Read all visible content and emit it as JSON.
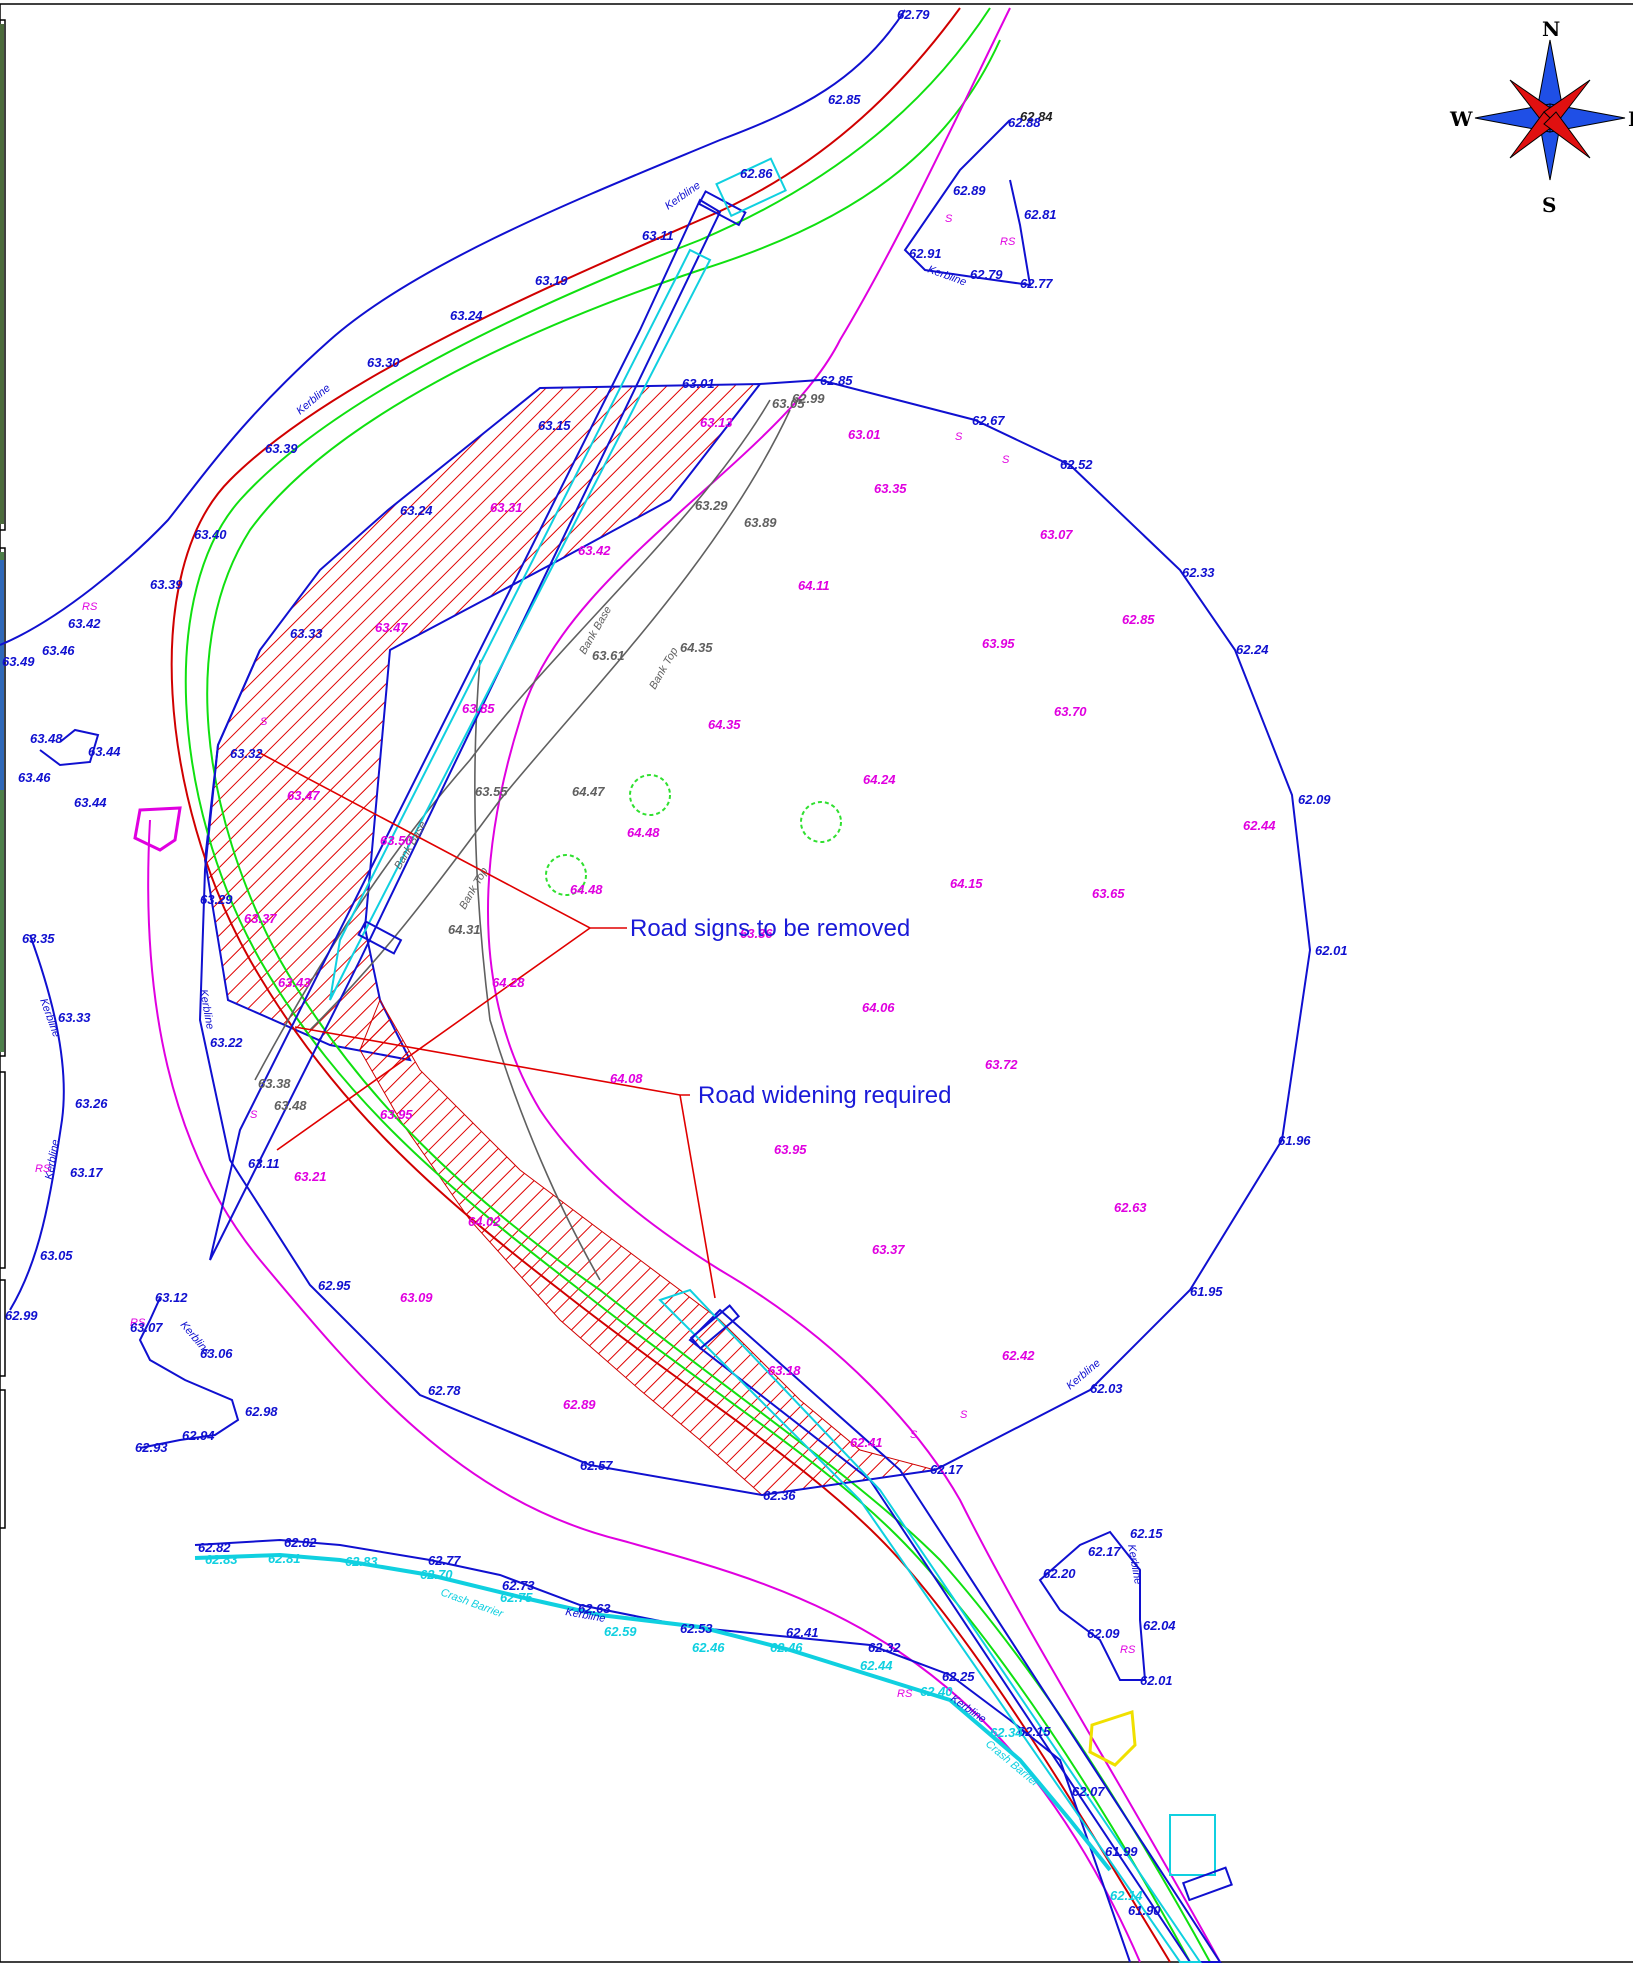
{
  "compass": {
    "north": "N",
    "south": "S",
    "west": "W",
    "east": "E"
  },
  "callouts": {
    "signs_removed": "Road signs to be removed",
    "widening": "Road widening required"
  },
  "feature_tags": {
    "kerbline": "Kerbline",
    "bank_base": "Bank Base",
    "bank_top": "Bank Top",
    "crash_barrier": "Crash Barrier",
    "sign": "S",
    "road_sign": "RS"
  },
  "spot_levels": [
    {
      "v": "62.79",
      "c": "blue"
    },
    {
      "v": "62.85",
      "c": "blue"
    },
    {
      "v": "62.84",
      "c": "black"
    },
    {
      "v": "62.88",
      "c": "blue"
    },
    {
      "v": "62.89",
      "c": "blue"
    },
    {
      "v": "62.81",
      "c": "blue"
    },
    {
      "v": "62.91",
      "c": "blue"
    },
    {
      "v": "62.79",
      "c": "blue"
    },
    {
      "v": "62.77",
      "c": "blue"
    },
    {
      "v": "62.86",
      "c": "blue"
    },
    {
      "v": "63.11",
      "c": "blue"
    },
    {
      "v": "63.19",
      "c": "blue"
    },
    {
      "v": "63.24",
      "c": "blue"
    },
    {
      "v": "63.30",
      "c": "blue"
    },
    {
      "v": "63.39",
      "c": "blue"
    },
    {
      "v": "63.40",
      "c": "blue"
    },
    {
      "v": "63.39",
      "c": "blue"
    },
    {
      "v": "63.42",
      "c": "blue"
    },
    {
      "v": "63.46",
      "c": "blue"
    },
    {
      "v": "63.49",
      "c": "blue"
    },
    {
      "v": "63.48",
      "c": "blue"
    },
    {
      "v": "63.44",
      "c": "blue"
    },
    {
      "v": "63.46",
      "c": "blue"
    },
    {
      "v": "63.44",
      "c": "blue"
    },
    {
      "v": "63.01",
      "c": "blue"
    },
    {
      "v": "62.85",
      "c": "blue"
    },
    {
      "v": "62.67",
      "c": "blue"
    },
    {
      "v": "62.52",
      "c": "blue"
    },
    {
      "v": "62.33",
      "c": "blue"
    },
    {
      "v": "62.24",
      "c": "blue"
    },
    {
      "v": "62.09",
      "c": "blue"
    },
    {
      "v": "62.01",
      "c": "blue"
    },
    {
      "v": "61.96",
      "c": "blue"
    },
    {
      "v": "61.95",
      "c": "blue"
    },
    {
      "v": "62.03",
      "c": "blue"
    },
    {
      "v": "62.17",
      "c": "blue"
    },
    {
      "v": "62.36",
      "c": "blue"
    },
    {
      "v": "62.57",
      "c": "blue"
    },
    {
      "v": "62.78",
      "c": "blue"
    },
    {
      "v": "62.95",
      "c": "blue"
    },
    {
      "v": "63.15",
      "c": "blue"
    },
    {
      "v": "63.24",
      "c": "blue"
    },
    {
      "v": "63.33",
      "c": "blue"
    },
    {
      "v": "63.32",
      "c": "blue"
    },
    {
      "v": "63.29",
      "c": "blue"
    },
    {
      "v": "63.22",
      "c": "blue"
    },
    {
      "v": "63.11",
      "c": "blue"
    },
    {
      "v": "63.35",
      "c": "blue"
    },
    {
      "v": "63.33",
      "c": "blue"
    },
    {
      "v": "63.26",
      "c": "blue"
    },
    {
      "v": "63.17",
      "c": "blue"
    },
    {
      "v": "63.05",
      "c": "blue"
    },
    {
      "v": "62.99",
      "c": "blue"
    },
    {
      "v": "63.12",
      "c": "blue"
    },
    {
      "v": "63.07",
      "c": "blue"
    },
    {
      "v": "63.06",
      "c": "blue"
    },
    {
      "v": "62.98",
      "c": "blue"
    },
    {
      "v": "62.94",
      "c": "blue"
    },
    {
      "v": "62.93",
      "c": "blue"
    },
    {
      "v": "62.82",
      "c": "blue"
    },
    {
      "v": "62.82",
      "c": "blue"
    },
    {
      "v": "62.77",
      "c": "blue"
    },
    {
      "v": "62.73",
      "c": "blue"
    },
    {
      "v": "62.63",
      "c": "blue"
    },
    {
      "v": "62.53",
      "c": "blue"
    },
    {
      "v": "62.41",
      "c": "blue"
    },
    {
      "v": "62.32",
      "c": "blue"
    },
    {
      "v": "62.25",
      "c": "blue"
    },
    {
      "v": "62.15",
      "c": "blue"
    },
    {
      "v": "62.07",
      "c": "blue"
    },
    {
      "v": "61.99",
      "c": "blue"
    },
    {
      "v": "61.90",
      "c": "blue"
    },
    {
      "v": "62.15",
      "c": "blue"
    },
    {
      "v": "62.17",
      "c": "blue"
    },
    {
      "v": "62.20",
      "c": "blue"
    },
    {
      "v": "62.04",
      "c": "blue"
    },
    {
      "v": "62.09",
      "c": "blue"
    },
    {
      "v": "62.01",
      "c": "blue"
    },
    {
      "v": "63.13",
      "c": "mag"
    },
    {
      "v": "63.31",
      "c": "mag"
    },
    {
      "v": "63.42",
      "c": "mag"
    },
    {
      "v": "63.47",
      "c": "mag"
    },
    {
      "v": "63.85",
      "c": "mag"
    },
    {
      "v": "63.47",
      "c": "mag"
    },
    {
      "v": "63.50",
      "c": "mag"
    },
    {
      "v": "63.37",
      "c": "mag"
    },
    {
      "v": "63.43",
      "c": "mag"
    },
    {
      "v": "63.21",
      "c": "mag"
    },
    {
      "v": "63.95",
      "c": "mag"
    },
    {
      "v": "64.02",
      "c": "mag"
    },
    {
      "v": "63.09",
      "c": "mag"
    },
    {
      "v": "62.89",
      "c": "mag"
    },
    {
      "v": "63.18",
      "c": "mag"
    },
    {
      "v": "62.41",
      "c": "mag"
    },
    {
      "v": "63.01",
      "c": "mag"
    },
    {
      "v": "63.35",
      "c": "mag"
    },
    {
      "v": "63.07",
      "c": "mag"
    },
    {
      "v": "64.11",
      "c": "mag"
    },
    {
      "v": "62.85",
      "c": "mag"
    },
    {
      "v": "63.95",
      "c": "mag"
    },
    {
      "v": "63.70",
      "c": "mag"
    },
    {
      "v": "64.35",
      "c": "mag"
    },
    {
      "v": "64.24",
      "c": "mag"
    },
    {
      "v": "64.48",
      "c": "mag"
    },
    {
      "v": "64.48",
      "c": "mag"
    },
    {
      "v": "62.44",
      "c": "mag"
    },
    {
      "v": "64.15",
      "c": "mag"
    },
    {
      "v": "63.65",
      "c": "mag"
    },
    {
      "v": "64.28",
      "c": "mag"
    },
    {
      "v": "64.06",
      "c": "mag"
    },
    {
      "v": "63.72",
      "c": "mag"
    },
    {
      "v": "64.08",
      "c": "mag"
    },
    {
      "v": "63.95",
      "c": "mag"
    },
    {
      "v": "62.63",
      "c": "mag"
    },
    {
      "v": "63.37",
      "c": "mag"
    },
    {
      "v": "62.42",
      "c": "mag"
    },
    {
      "v": "63.36",
      "c": "mag"
    },
    {
      "v": "63.05",
      "c": "grey"
    },
    {
      "v": "62.99",
      "c": "grey"
    },
    {
      "v": "63.29",
      "c": "grey"
    },
    {
      "v": "63.89",
      "c": "grey"
    },
    {
      "v": "63.61",
      "c": "grey"
    },
    {
      "v": "64.35",
      "c": "grey"
    },
    {
      "v": "63.55",
      "c": "grey"
    },
    {
      "v": "64.47",
      "c": "grey"
    },
    {
      "v": "64.31",
      "c": "grey"
    },
    {
      "v": "63.38",
      "c": "grey"
    },
    {
      "v": "63.48",
      "c": "grey"
    },
    {
      "v": "62.83",
      "c": "cyan"
    },
    {
      "v": "62.81",
      "c": "cyan"
    },
    {
      "v": "62.83",
      "c": "cyan"
    },
    {
      "v": "62.70",
      "c": "cyan"
    },
    {
      "v": "62.75",
      "c": "cyan"
    },
    {
      "v": "62.59",
      "c": "cyan"
    },
    {
      "v": "62.46",
      "c": "cyan"
    },
    {
      "v": "62.46",
      "c": "cyan"
    },
    {
      "v": "62.44",
      "c": "cyan"
    },
    {
      "v": "62.40",
      "c": "cyan"
    },
    {
      "v": "62.34",
      "c": "cyan"
    },
    {
      "v": "62.14",
      "c": "cyan"
    }
  ],
  "colors": {
    "kerb_blue": "#1010d0",
    "centre_red": "#d00000",
    "edge_green": "#10e010",
    "verge_magenta": "#e000e0",
    "bank_grey": "#606060",
    "barrier_cyan": "#10d0e0",
    "hatch_red": "#e00000",
    "callout_text": "#1a1ad8",
    "tree_green": "#30e030",
    "marker_yellow": "#f0e000"
  }
}
